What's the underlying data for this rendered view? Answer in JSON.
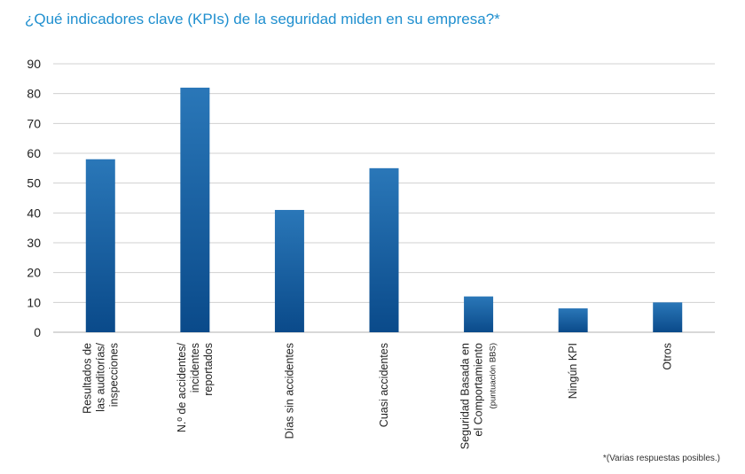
{
  "title": "¿Qué indicadores clave (KPIs) de la seguridad miden en su empresa?*",
  "footnote": "*(Varias respuestas posibles.)",
  "colors": {
    "title": "#1f8fcf",
    "bar_top": "#2a77b8",
    "bar_bottom": "#0a4a8a",
    "grid": "#d0d0d0"
  },
  "chart_data": {
    "type": "bar",
    "title": "¿Qué indicadores clave (KPIs) de la seguridad miden en su empresa?*",
    "ylim": [
      0,
      90
    ],
    "yticks": [
      0,
      10,
      20,
      30,
      40,
      50,
      60,
      70,
      80,
      90
    ],
    "grid": true,
    "categories": [
      [
        "Resultados de",
        "las auditorías/",
        "inspecciones"
      ],
      [
        "N.º de accidentes/",
        "incidentes",
        "reportados"
      ],
      [
        "Días sin accidentes"
      ],
      [
        "Cuasi accidentes"
      ],
      [
        "Seguridad Basada en",
        "el Comportamiento",
        "(puntuación BBS)"
      ],
      [
        "Ningún KPI"
      ],
      [
        "Otros"
      ]
    ],
    "values": [
      58,
      82,
      41,
      55,
      12,
      8,
      10
    ]
  }
}
